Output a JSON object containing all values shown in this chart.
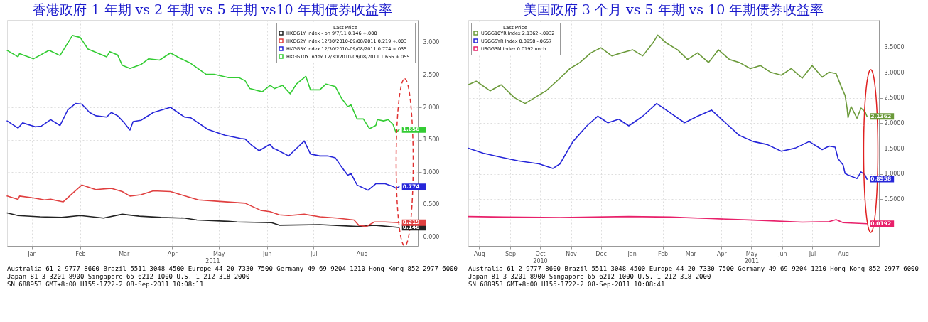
{
  "chart_data": [
    {
      "type": "line",
      "title": "香港政府 1 年期 vs 2 年期 vs 5 年期  vs10 年期债券收益率",
      "legend_title": "Last Price",
      "legend": "top right",
      "grid": true,
      "xlim": [
        "2010-12-30",
        "2011-09-20"
      ],
      "ylim": [
        -0.14,
        3.35
      ],
      "xticks": [
        {
          "value": "2011-01-15",
          "label": "Jan"
        },
        {
          "value": "2011-02-15",
          "label": "Feb"
        },
        {
          "value": "2011-03-15",
          "label": "Mar"
        },
        {
          "value": "2011-04-15",
          "label": "Apr"
        },
        {
          "value": "2011-05-15",
          "label": "May"
        },
        {
          "value": "2011-06-15",
          "label": "Jun"
        },
        {
          "value": "2011-07-15",
          "label": "Jul"
        },
        {
          "value": "2011-08-15",
          "label": "Aug"
        }
      ],
      "yticks": [
        {
          "value": 0,
          "label": "0.000"
        },
        {
          "value": 0.5,
          "label": "0.500"
        },
        {
          "value": 1,
          "label": "1.000"
        },
        {
          "value": 1.5,
          "label": "1.500"
        },
        {
          "value": 2,
          "label": "2.000"
        },
        {
          "value": 2.5,
          "label": "2.500"
        },
        {
          "value": 3,
          "label": "3.000"
        }
      ],
      "series": [
        {
          "name": "HKGG1Y Index - on 9/7/11  0.146  +.000",
          "color": "#222222",
          "x": [
            "2010-12-30",
            "2011-01-06",
            "2011-01-20",
            "2011-02-03",
            "2011-02-15",
            "2011-03-02",
            "2011-03-14",
            "2011-03-25",
            "2011-04-08",
            "2011-04-23",
            "2011-05-01",
            "2011-05-21",
            "2011-05-27",
            "2011-06-18",
            "2011-06-23",
            "2011-07-19",
            "2011-08-12",
            "2011-08-23",
            "2011-09-08"
          ],
          "values": [
            0.37,
            0.33,
            0.31,
            0.3,
            0.33,
            0.29,
            0.35,
            0.32,
            0.3,
            0.29,
            0.26,
            0.24,
            0.23,
            0.22,
            0.18,
            0.19,
            0.16,
            0.18,
            0.146
          ],
          "value_labels": [
            null,
            null,
            null,
            null,
            null,
            null,
            null,
            null,
            null,
            null,
            null,
            null,
            null,
            null,
            null,
            null,
            null,
            null,
            "0.146"
          ]
        },
        {
          "name": "HKGG2Y Index 12/30/2010-09/08/2011  0.219  +.003",
          "color": "#e04040",
          "x": [
            "2010-12-30",
            "2011-01-06",
            "2011-01-07",
            "2011-01-16",
            "2011-01-23",
            "2011-01-27",
            "2011-02-04",
            "2011-02-10",
            "2011-02-16",
            "2011-02-25",
            "2011-03-07",
            "2011-03-14",
            "2011-03-19",
            "2011-03-26",
            "2011-04-03",
            "2011-04-14",
            "2011-04-25",
            "2011-05-02",
            "2011-05-14",
            "2011-06-01",
            "2011-06-11",
            "2011-06-17",
            "2011-06-23",
            "2011-06-29",
            "2011-07-09",
            "2011-07-19",
            "2011-07-30",
            "2011-08-10",
            "2011-08-13",
            "2011-08-18",
            "2011-08-23",
            "2011-08-30",
            "2011-09-08"
          ],
          "values": [
            0.63,
            0.58,
            0.63,
            0.6,
            0.57,
            0.58,
            0.54,
            0.67,
            0.8,
            0.73,
            0.75,
            0.7,
            0.63,
            0.65,
            0.71,
            0.7,
            0.62,
            0.57,
            0.55,
            0.52,
            0.41,
            0.39,
            0.34,
            0.33,
            0.35,
            0.31,
            0.29,
            0.26,
            0.18,
            0.16,
            0.23,
            0.23,
            0.219
          ],
          "value_labels": [
            null,
            null,
            null,
            null,
            null,
            null,
            null,
            null,
            null,
            null,
            null,
            null,
            null,
            null,
            null,
            null,
            null,
            null,
            null,
            null,
            null,
            null,
            null,
            null,
            null,
            null,
            null,
            null,
            null,
            null,
            null,
            null,
            "0.219"
          ]
        },
        {
          "name": "HKGG5Y Index 12/30/2010-09/08/2011  0.774  +.035",
          "color": "#2626d9",
          "x": [
            "2010-12-30",
            "2011-01-06",
            "2011-01-09",
            "2011-01-17",
            "2011-01-21",
            "2011-01-27",
            "2011-02-02",
            "2011-02-07",
            "2011-02-12",
            "2011-02-16",
            "2011-02-21",
            "2011-02-25",
            "2011-03-04",
            "2011-03-07",
            "2011-03-11",
            "2011-03-15",
            "2011-03-19",
            "2011-03-21",
            "2011-03-26",
            "2011-04-03",
            "2011-04-14",
            "2011-04-23",
            "2011-04-27",
            "2011-05-08",
            "2011-05-19",
            "2011-05-29",
            "2011-06-01",
            "2011-06-05",
            "2011-06-10",
            "2011-06-17",
            "2011-06-19",
            "2011-06-21",
            "2011-06-29",
            "2011-07-02",
            "2011-07-09",
            "2011-07-13",
            "2011-07-19",
            "2011-07-24",
            "2011-07-29",
            "2011-08-02",
            "2011-08-06",
            "2011-08-08",
            "2011-08-12",
            "2011-08-19",
            "2011-08-24",
            "2011-08-27",
            "2011-08-30",
            "2011-09-04",
            "2011-09-06",
            "2011-09-08"
          ],
          "values": [
            1.79,
            1.68,
            1.76,
            1.7,
            1.71,
            1.81,
            1.72,
            1.96,
            2.06,
            2.05,
            1.92,
            1.87,
            1.85,
            1.92,
            1.87,
            1.77,
            1.65,
            1.78,
            1.8,
            1.92,
            2.0,
            1.85,
            1.84,
            1.66,
            1.57,
            1.52,
            1.51,
            1.42,
            1.33,
            1.43,
            1.37,
            1.35,
            1.25,
            1.32,
            1.48,
            1.28,
            1.25,
            1.25,
            1.22,
            1.08,
            0.95,
            0.98,
            0.8,
            0.72,
            0.82,
            0.82,
            0.82,
            0.78,
            0.75,
            0.774
          ],
          "value_labels": [
            null,
            null,
            null,
            null,
            null,
            null,
            null,
            null,
            null,
            null,
            null,
            null,
            null,
            null,
            null,
            null,
            null,
            null,
            null,
            null,
            null,
            null,
            null,
            null,
            null,
            null,
            null,
            null,
            null,
            null,
            null,
            null,
            null,
            null,
            null,
            null,
            null,
            null,
            null,
            null,
            null,
            null,
            null,
            null,
            null,
            null,
            null,
            null,
            null,
            "0.774"
          ]
        },
        {
          "name": "HKGG10Y Index 12/30/2010-09/08/2011  1.656  +.055",
          "color": "#33cc33",
          "x": [
            "2010-12-30",
            "2011-01-06",
            "2011-01-07",
            "2011-01-16",
            "2011-01-26",
            "2011-02-02",
            "2011-02-10",
            "2011-02-15",
            "2011-02-20",
            "2011-03-04",
            "2011-03-06",
            "2011-03-11",
            "2011-03-14",
            "2011-03-19",
            "2011-03-26",
            "2011-03-31",
            "2011-04-07",
            "2011-04-14",
            "2011-04-20",
            "2011-04-27",
            "2011-05-07",
            "2011-05-12",
            "2011-05-21",
            "2011-05-28",
            "2011-06-01",
            "2011-06-04",
            "2011-06-12",
            "2011-06-17",
            "2011-06-20",
            "2011-06-25",
            "2011-06-30",
            "2011-07-04",
            "2011-07-10",
            "2011-07-13",
            "2011-07-19",
            "2011-07-23",
            "2011-07-29",
            "2011-08-02",
            "2011-08-06",
            "2011-08-08",
            "2011-08-12",
            "2011-08-16",
            "2011-08-20",
            "2011-08-24",
            "2011-08-25",
            "2011-08-29",
            "2011-09-01",
            "2011-09-04",
            "2011-09-06",
            "2011-09-08"
          ],
          "values": [
            2.88,
            2.78,
            2.83,
            2.75,
            2.88,
            2.8,
            3.11,
            3.08,
            2.9,
            2.78,
            2.86,
            2.81,
            2.65,
            2.6,
            2.66,
            2.75,
            2.73,
            2.84,
            2.76,
            2.68,
            2.51,
            2.51,
            2.46,
            2.46,
            2.41,
            2.29,
            2.24,
            2.34,
            2.29,
            2.34,
            2.21,
            2.36,
            2.48,
            2.27,
            2.27,
            2.36,
            2.32,
            2.14,
            2.01,
            2.04,
            1.82,
            1.82,
            1.67,
            1.72,
            1.81,
            1.79,
            1.81,
            1.74,
            1.61,
            1.656
          ],
          "value_labels": [
            null,
            null,
            null,
            null,
            null,
            null,
            null,
            null,
            null,
            null,
            null,
            null,
            null,
            null,
            null,
            null,
            null,
            null,
            null,
            null,
            null,
            null,
            null,
            null,
            null,
            null,
            null,
            null,
            null,
            null,
            null,
            null,
            null,
            null,
            null,
            null,
            null,
            null,
            null,
            null,
            null,
            null,
            null,
            null,
            null,
            null,
            null,
            null,
            null,
            "1.656"
          ]
        }
      ],
      "xlabel": "2011",
      "annotations": [
        "Australia 61 2 9777 8600 Brazil 5511 3048 4500 Europe 44 20 7330 7500 Germany 49 69 9204 1210 Hong Kong 852 2977 6000",
        "Japan 81 3 3201 8900      Singapore 65 6212 1000      U.S. 1 212 318 2000",
        "SN 688953      GMT+8:00 H155-1722-2 08-Sep-2011 10:08:11"
      ]
    },
    {
      "type": "line",
      "title": "美国政府 3 个月  vs 5 年期  vs 10 年期债券收益率",
      "legend_title": "Last Price",
      "legend": "top left",
      "grid": true,
      "xlim": [
        "2010-08-04",
        "2011-09-20"
      ],
      "ylim": [
        -0.42,
        4.04
      ],
      "xticks": [
        {
          "value": "2010-08-15",
          "label": "Aug"
        },
        {
          "value": "2010-09-15",
          "label": "Sep"
        },
        {
          "value": "2010-10-15",
          "label": "Oct\n2010"
        },
        {
          "value": "2010-11-15",
          "label": "Nov"
        },
        {
          "value": "2010-12-15",
          "label": "Dec"
        },
        {
          "value": "2011-01-15",
          "label": "Jan"
        },
        {
          "value": "2011-02-15",
          "label": "Feb"
        },
        {
          "value": "2011-03-15",
          "label": "Mar"
        },
        {
          "value": "2011-04-15",
          "label": "Apr"
        },
        {
          "value": "2011-05-15",
          "label": "May\n2011"
        },
        {
          "value": "2011-06-15",
          "label": "Jun"
        },
        {
          "value": "2011-07-15",
          "label": "Jul"
        },
        {
          "value": "2011-08-15",
          "label": "Aug"
        }
      ],
      "yticks": [
        {
          "value": 0.5,
          "label": "0.5000"
        },
        {
          "value": 1,
          "label": "1.0000"
        },
        {
          "value": 1.5,
          "label": "1.5000"
        },
        {
          "value": 2,
          "label": "2.0000"
        },
        {
          "value": 2.5,
          "label": "2.5000"
        },
        {
          "value": 3,
          "label": "3.0000"
        },
        {
          "value": 3.5,
          "label": "3.5000"
        }
      ],
      "series": [
        {
          "name": "USGG10YR Index  2.1362  -.0932",
          "color": "#6b9a3a",
          "x": [
            "2010-08-04",
            "2010-08-12",
            "2010-08-26",
            "2010-09-06",
            "2010-09-19",
            "2010-09-30",
            "2010-10-10",
            "2010-10-21",
            "2010-11-04",
            "2010-11-14",
            "2010-11-24",
            "2010-12-05",
            "2010-12-15",
            "2010-12-26",
            "2011-01-05",
            "2011-01-16",
            "2011-01-26",
            "2011-02-05",
            "2011-02-10",
            "2011-02-19",
            "2011-03-02",
            "2011-03-12",
            "2011-03-22",
            "2011-04-02",
            "2011-04-12",
            "2011-04-23",
            "2011-05-03",
            "2011-05-14",
            "2011-05-24",
            "2011-06-03",
            "2011-06-14",
            "2011-06-24",
            "2011-07-05",
            "2011-07-15",
            "2011-07-25",
            "2011-08-01",
            "2011-08-08",
            "2011-08-13",
            "2011-08-17",
            "2011-08-19",
            "2011-08-20",
            "2011-08-23",
            "2011-08-29",
            "2011-09-02",
            "2011-09-06",
            "2011-09-08"
          ],
          "values": [
            2.76,
            2.83,
            2.64,
            2.76,
            2.51,
            2.39,
            2.51,
            2.64,
            2.89,
            3.08,
            3.2,
            3.39,
            3.49,
            3.33,
            3.39,
            3.45,
            3.33,
            3.58,
            3.74,
            3.58,
            3.45,
            3.26,
            3.39,
            3.2,
            3.45,
            3.26,
            3.2,
            3.08,
            3.14,
            3.01,
            2.95,
            3.08,
            2.89,
            3.14,
            2.91,
            3.01,
            2.98,
            2.73,
            2.55,
            2.3,
            2.11,
            2.33,
            2.1,
            2.3,
            2.23,
            2.1362
          ],
          "value_labels": [
            null,
            null,
            null,
            null,
            null,
            null,
            null,
            null,
            null,
            null,
            null,
            null,
            null,
            null,
            null,
            null,
            null,
            null,
            null,
            null,
            null,
            null,
            null,
            null,
            null,
            null,
            null,
            null,
            null,
            null,
            null,
            null,
            null,
            null,
            null,
            null,
            null,
            null,
            null,
            null,
            null,
            null,
            null,
            null,
            null,
            "2.1362"
          ]
        },
        {
          "name": "USGG5YR Index  0.8958  -.0657",
          "color": "#2626d9",
          "x": [
            "2010-08-04",
            "2010-08-19",
            "2010-09-06",
            "2010-09-23",
            "2010-10-14",
            "2010-10-28",
            "2010-11-04",
            "2010-11-17",
            "2010-12-01",
            "2010-12-12",
            "2010-12-22",
            "2011-01-02",
            "2011-01-12",
            "2011-01-26",
            "2011-02-09",
            "2011-02-23",
            "2011-03-09",
            "2011-03-22",
            "2011-04-05",
            "2011-04-19",
            "2011-05-03",
            "2011-05-17",
            "2011-05-31",
            "2011-06-14",
            "2011-06-28",
            "2011-07-12",
            "2011-07-25",
            "2011-08-01",
            "2011-08-07",
            "2011-08-10",
            "2011-08-15",
            "2011-08-17",
            "2011-08-20",
            "2011-08-29",
            "2011-09-02",
            "2011-09-06",
            "2011-09-08"
          ],
          "values": [
            1.51,
            1.41,
            1.33,
            1.26,
            1.2,
            1.11,
            1.2,
            1.64,
            1.95,
            2.14,
            2.01,
            2.08,
            1.95,
            2.14,
            2.39,
            2.2,
            2.01,
            2.14,
            2.26,
            2.01,
            1.76,
            1.64,
            1.58,
            1.45,
            1.51,
            1.64,
            1.48,
            1.55,
            1.53,
            1.3,
            1.18,
            1.01,
            0.98,
            0.91,
            1.04,
            0.98,
            0.8958
          ],
          "value_labels": [
            null,
            null,
            null,
            null,
            null,
            null,
            null,
            null,
            null,
            null,
            null,
            null,
            null,
            null,
            null,
            null,
            null,
            null,
            null,
            null,
            null,
            null,
            null,
            null,
            null,
            null,
            null,
            null,
            null,
            null,
            null,
            null,
            null,
            null,
            null,
            null,
            "0.8958"
          ]
        },
        {
          "name": "USGG3M Index  0.0192  unch",
          "color": "#e8206a",
          "x": [
            "2010-08-04",
            "2010-09-09",
            "2010-11-04",
            "2011-01-12",
            "2011-02-23",
            "2011-04-05",
            "2011-05-17",
            "2011-07-05",
            "2011-08-01",
            "2011-08-08",
            "2011-08-15",
            "2011-09-08"
          ],
          "values": [
            0.16,
            0.15,
            0.14,
            0.16,
            0.15,
            0.12,
            0.09,
            0.05,
            0.06,
            0.1,
            0.04,
            0.0192
          ],
          "value_labels": [
            null,
            null,
            null,
            null,
            null,
            null,
            null,
            null,
            null,
            null,
            null,
            "0.0192"
          ]
        }
      ],
      "annotations": [
        "Australia 61 2 9777 8600 Brazil 5511 3048 4500 Europe 44 20 7330 7500 Germany 49 69 9204 1210 Hong Kong 852 2977 6000",
        "Japan 81 3 3201 8900      Singapore 65 6212 1000      U.S. 1 212 318 2000",
        "SN 688953      GMT+8:00 H155-1722-2 08-Sep-2011 10:08:41"
      ]
    }
  ]
}
